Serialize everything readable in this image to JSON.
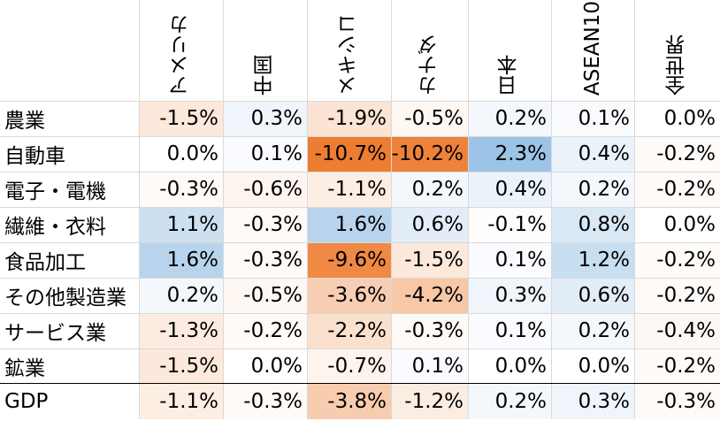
{
  "chart_data": {
    "type": "heatmap",
    "columns": [
      "アメリカ",
      "中国",
      "メキシコ",
      "カナダ",
      "日本",
      "ASEAN10",
      "全世界"
    ],
    "rows": [
      "農業",
      "自動車",
      "電子・電機",
      "繊維・衣料",
      "食品加工",
      "その他製造業",
      "サービス業",
      "鉱業",
      "GDP"
    ],
    "values": [
      [
        -1.5,
        0.3,
        -1.9,
        -0.5,
        0.2,
        0.1,
        0.0
      ],
      [
        0.0,
        0.1,
        -10.7,
        -10.2,
        2.3,
        0.4,
        -0.2
      ],
      [
        -0.3,
        -0.6,
        -1.1,
        0.2,
        0.4,
        0.2,
        -0.2
      ],
      [
        1.1,
        -0.3,
        1.6,
        0.6,
        -0.1,
        0.8,
        0.0
      ],
      [
        1.6,
        -0.3,
        -9.6,
        -1.5,
        0.1,
        1.2,
        -0.2
      ],
      [
        0.2,
        -0.5,
        -3.6,
        -4.2,
        0.3,
        0.6,
        -0.2
      ],
      [
        -1.3,
        -0.2,
        -2.2,
        -0.3,
        0.1,
        0.2,
        -0.4
      ],
      [
        -1.5,
        0.0,
        -0.7,
        0.1,
        0.0,
        0.0,
        -0.2
      ],
      [
        -1.1,
        -0.3,
        -3.8,
        -1.2,
        0.2,
        0.3,
        -0.3
      ]
    ],
    "value_format": "percent_1dp",
    "colors": {
      "negative": "#ed7d31",
      "positive": "#9dc3e6",
      "neutral": "#ffffff"
    },
    "title": "",
    "xlabel": "",
    "ylabel": ""
  }
}
